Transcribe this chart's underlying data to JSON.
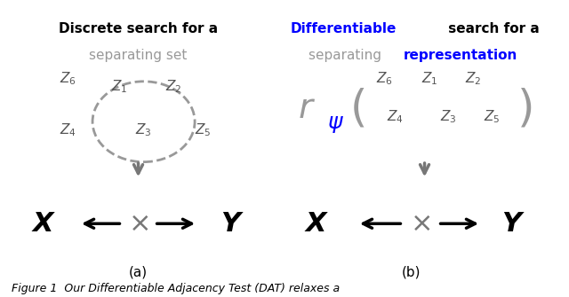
{
  "bg_color": "#ffffff",
  "title_left_line1": "Discrete search for a",
  "title_left_line2": "separating set",
  "title_right_line1_part1": "Differentiable",
  "title_right_line1_part2": " search for a",
  "title_right_line2_part1": "separating ",
  "title_right_line2_part2": "representation",
  "caption": "Figure 1  Our Differentiable Adjacency Test (DAT) relaxes a",
  "gray": "#999999",
  "dark_gray": "#555555",
  "blue": "#0000ff",
  "black": "#000000",
  "arrow_gray": "#777777"
}
